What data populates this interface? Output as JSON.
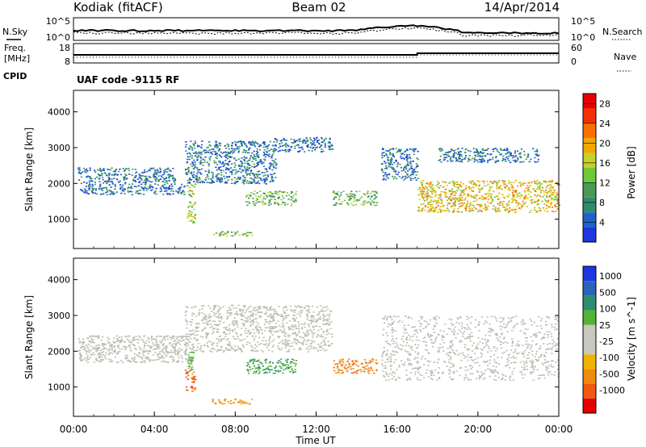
{
  "header": {
    "station": "Kodiak (fitACF)",
    "beam": "Beam 02",
    "date": "14/Apr/2014"
  },
  "noise_panel": {
    "left_label": "N.Sky",
    "right_label": "N.Search",
    "left_ticks": [
      "10^5",
      "10^0"
    ],
    "right_ticks": [
      "10^5",
      "10^0"
    ]
  },
  "freq_panel": {
    "left_label_line1": "Freq.",
    "left_label_line2": "[MHz]",
    "left_ticks": [
      "18",
      "8"
    ],
    "right_label": "Nave",
    "right_ticks": [
      "60",
      "0"
    ]
  },
  "cpid": {
    "label": "CPID",
    "value": "UAF code -9115 RF"
  },
  "colors": {
    "power_scale": [
      "#1c36e4",
      "#1e64c8",
      "#2e8c6e",
      "#4a9a56",
      "#6ec838",
      "#c6d02a",
      "#f0a800",
      "#f87000",
      "#f23000",
      "#e60000"
    ],
    "velocity_scale": [
      "#1c36e4",
      "#2a64b8",
      "#2e8c6e",
      "#52b434",
      "#c8c8c0",
      "#c8c8c0",
      "#f0b400",
      "#f08a10",
      "#f05a10",
      "#e60000"
    ],
    "ground_scatter": "#bdbdb5"
  },
  "chart_data": [
    {
      "type": "heatmap",
      "name": "Power",
      "xlabel": "",
      "ylabel": "Slant Range [km]",
      "x_ticks": [
        "00:00",
        "04:00",
        "08:00",
        "12:00",
        "16:00",
        "20:00",
        "00:00"
      ],
      "xlim_hours": [
        0,
        24
      ],
      "y_ticks": [
        1000,
        2000,
        3000,
        4000
      ],
      "ylim_km": [
        180,
        4600
      ],
      "colorbar": {
        "label": "Power [dB]",
        "ticks": [
          "4",
          "8",
          "12",
          "16",
          "20",
          "24",
          "28"
        ],
        "range": [
          0,
          30
        ]
      },
      "echo_bands": [
        {
          "start_h": 0.2,
          "end_h": 5.0,
          "range_km": [
            2000,
            2450
          ],
          "level": 6
        },
        {
          "start_h": 0.3,
          "end_h": 5.6,
          "range_km": [
            1700,
            2000
          ],
          "level": 6
        },
        {
          "start_h": 5.5,
          "end_h": 10.0,
          "range_km": [
            2000,
            3200
          ],
          "level": 6
        },
        {
          "start_h": 9.8,
          "end_h": 12.8,
          "range_km": [
            2900,
            3300
          ],
          "level": 5
        },
        {
          "start_h": 15.2,
          "end_h": 17.0,
          "range_km": [
            2100,
            3000
          ],
          "level": 6
        },
        {
          "start_h": 17.0,
          "end_h": 24.0,
          "range_km": [
            1200,
            2100
          ],
          "level": 18
        },
        {
          "start_h": 18.0,
          "end_h": 23.0,
          "range_km": [
            2600,
            3000
          ],
          "level": 6
        },
        {
          "start_h": 5.6,
          "end_h": 6.0,
          "range_km": [
            900,
            2000
          ],
          "level": 14
        },
        {
          "start_h": 6.8,
          "end_h": 8.8,
          "range_km": [
            540,
            680
          ],
          "level": 13
        },
        {
          "start_h": 8.5,
          "end_h": 11.0,
          "range_km": [
            1400,
            1800
          ],
          "level": 12
        },
        {
          "start_h": 12.8,
          "end_h": 15.0,
          "range_km": [
            1400,
            1800
          ],
          "level": 12
        }
      ]
    },
    {
      "type": "heatmap",
      "name": "Velocity",
      "xlabel": "Time UT",
      "ylabel": "Slant Range [km]",
      "x_ticks": [
        "00:00",
        "04:00",
        "08:00",
        "12:00",
        "16:00",
        "20:00",
        "00:00"
      ],
      "xlim_hours": [
        0,
        24
      ],
      "y_ticks": [
        1000,
        2000,
        3000,
        4000
      ],
      "ylim_km": [
        180,
        4600
      ],
      "colorbar": {
        "label": "Velocity [m s^-1]",
        "ticks": [
          "1000",
          "500",
          "100",
          "25",
          "-25",
          "-100",
          "-500",
          "-1000"
        ],
        "range": [
          -1000,
          1000
        ]
      },
      "echo_bands": [
        {
          "start_h": 0.2,
          "end_h": 5.6,
          "range_km": [
            1700,
            2450
          ],
          "velocity": 0,
          "ground_scatter": true
        },
        {
          "start_h": 5.5,
          "end_h": 12.8,
          "range_km": [
            2000,
            3300
          ],
          "velocity": 0,
          "ground_scatter": true
        },
        {
          "start_h": 15.2,
          "end_h": 24.0,
          "range_km": [
            1200,
            3000
          ],
          "velocity": 0,
          "ground_scatter": true
        },
        {
          "start_h": 5.5,
          "end_h": 6.0,
          "range_km": [
            900,
            1500
          ],
          "velocity": -300
        },
        {
          "start_h": 5.6,
          "end_h": 5.9,
          "range_km": [
            1500,
            2000
          ],
          "velocity": 150
        },
        {
          "start_h": 6.8,
          "end_h": 8.8,
          "range_km": [
            540,
            680
          ],
          "velocity": -120
        },
        {
          "start_h": 8.5,
          "end_h": 11.0,
          "range_km": [
            1400,
            1800
          ],
          "velocity": 250
        },
        {
          "start_h": 12.8,
          "end_h": 15.0,
          "range_km": [
            1400,
            1800
          ],
          "velocity": -200
        }
      ]
    }
  ]
}
